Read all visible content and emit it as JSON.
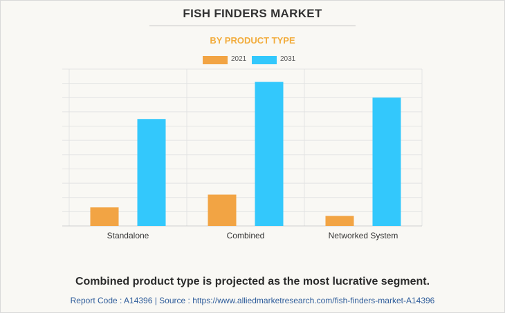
{
  "header": {
    "title": "FISH FINDERS MARKET",
    "subtitle": "BY PRODUCT TYPE"
  },
  "colors": {
    "series_2021": "#f2a444",
    "series_2031": "#33c8fc",
    "subtitle": "#f2ac3c",
    "source": "#2e5c9a"
  },
  "legend": {
    "items": [
      "2021",
      "2031"
    ]
  },
  "chart_data": {
    "type": "bar",
    "title": "FISH FINDERS MARKET",
    "subtitle": "BY PRODUCT TYPE",
    "categories": [
      "Standalone",
      "Combined",
      "Networked System"
    ],
    "series": [
      {
        "name": "2021",
        "values": [
          13,
          22,
          7
        ]
      },
      {
        "name": "2031",
        "values": [
          75,
          101,
          90
        ]
      }
    ],
    "xlabel": "",
    "ylabel": "",
    "ylim": [
      0,
      110
    ],
    "grid": true,
    "legend_position": "top-center"
  },
  "footer": {
    "headline": "Combined product type is projected as the most lucrative segment.",
    "source": "Report Code : A14396  |  Source : https://www.alliedmarketresearch.com/fish-finders-market-A14396"
  }
}
